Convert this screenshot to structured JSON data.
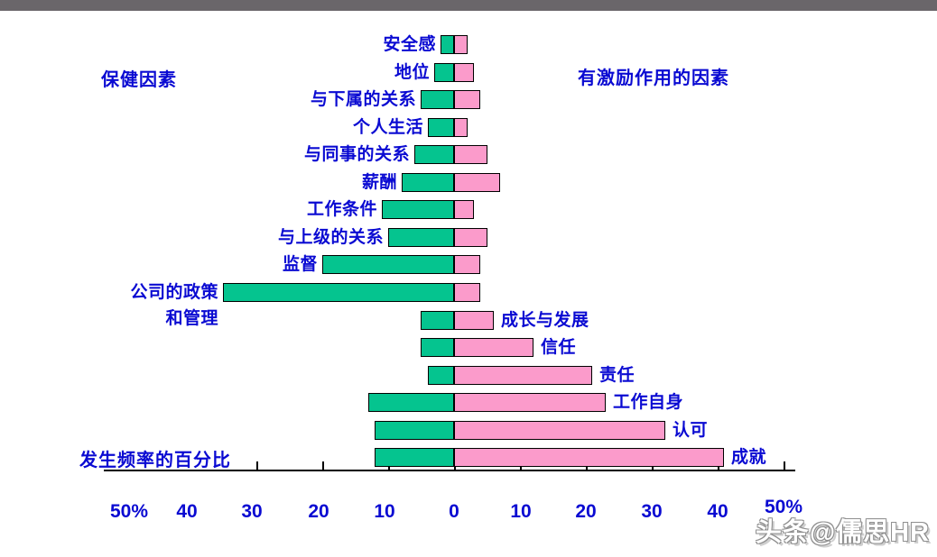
{
  "page": {
    "background": "#ffffff",
    "top_bar_color": "#6a666a"
  },
  "watermark": {
    "text": "头条@儒思HR"
  },
  "chart_data": {
    "type": "bar",
    "variant": "diverging-horizontal",
    "title_left": "保健因素",
    "title_right": "有激励作用的因素",
    "axis_label": "发生频率的百分比",
    "unit": "percent frequency",
    "xlim": [
      -50,
      50
    ],
    "tick_step": 10,
    "axis_tick_labels": [
      "50%",
      "40",
      "30",
      "20",
      "10",
      "0",
      "10",
      "20",
      "30",
      "40",
      "50%"
    ],
    "colors": {
      "hygiene_bar": "#05c48f",
      "motivator_bar": "#fb9bcb",
      "text_blue": "#0a0ad2",
      "bar_border": "#000000",
      "axis": "#000000",
      "top_bar": "#6a666a",
      "watermark_gray": "#8f8f8f"
    },
    "rows": [
      {
        "label": "安全感",
        "label_side": "left",
        "hygiene_pct": 2,
        "motivator_pct": 2
      },
      {
        "label": "地位",
        "label_side": "left",
        "hygiene_pct": 3,
        "motivator_pct": 3
      },
      {
        "label": "与下属的关系",
        "label_side": "left",
        "hygiene_pct": 5,
        "motivator_pct": 4
      },
      {
        "label": "个人生活",
        "label_side": "left",
        "hygiene_pct": 4,
        "motivator_pct": 2
      },
      {
        "label": "与同事的关系",
        "label_side": "left",
        "hygiene_pct": 6,
        "motivator_pct": 5
      },
      {
        "label": "薪酬",
        "label_side": "left",
        "hygiene_pct": 8,
        "motivator_pct": 7
      },
      {
        "label": "工作条件",
        "label_side": "left",
        "hygiene_pct": 11,
        "motivator_pct": 3
      },
      {
        "label": "与上级的关系",
        "label_side": "left",
        "hygiene_pct": 10,
        "motivator_pct": 5
      },
      {
        "label": "监督",
        "label_side": "left",
        "hygiene_pct": 20,
        "motivator_pct": 4
      },
      {
        "label": "公司的政策\n和管理",
        "label_side": "left",
        "hygiene_pct": 35,
        "motivator_pct": 4
      },
      {
        "label": "成长与发展",
        "label_side": "right",
        "hygiene_pct": 5,
        "motivator_pct": 6
      },
      {
        "label": "信任",
        "label_side": "right",
        "hygiene_pct": 5,
        "motivator_pct": 12
      },
      {
        "label": "责任",
        "label_side": "right",
        "hygiene_pct": 4,
        "motivator_pct": 21
      },
      {
        "label": "工作自身",
        "label_side": "right",
        "hygiene_pct": 13,
        "motivator_pct": 23
      },
      {
        "label": "认可",
        "label_side": "right",
        "hygiene_pct": 12,
        "motivator_pct": 32
      },
      {
        "label": "成就",
        "label_side": "right",
        "hygiene_pct": 12,
        "motivator_pct": 41
      }
    ]
  }
}
